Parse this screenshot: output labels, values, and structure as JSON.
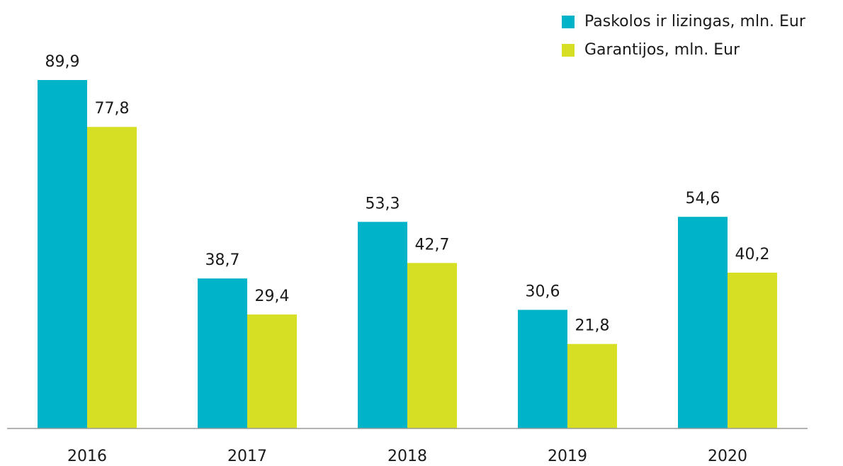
{
  "chart_data": {
    "type": "bar",
    "categories": [
      "2016",
      "2017",
      "2018",
      "2019",
      "2020"
    ],
    "series": [
      {
        "name": "Paskolos ir lizingas, mln. Eur",
        "color": "#00b3c9",
        "values": [
          89.9,
          38.7,
          53.3,
          30.6,
          54.6
        ],
        "value_labels": [
          "89,9",
          "38,7",
          "53,3",
          "30,6",
          "54,6"
        ]
      },
      {
        "name": "Garantijos, mln. Eur",
        "color": "#d6df24",
        "values": [
          77.8,
          29.4,
          42.7,
          21.8,
          40.2
        ],
        "value_labels": [
          "77,8",
          "29,4",
          "42,7",
          "21,8",
          "40,2"
        ]
      }
    ],
    "legend": "top-right"
  }
}
